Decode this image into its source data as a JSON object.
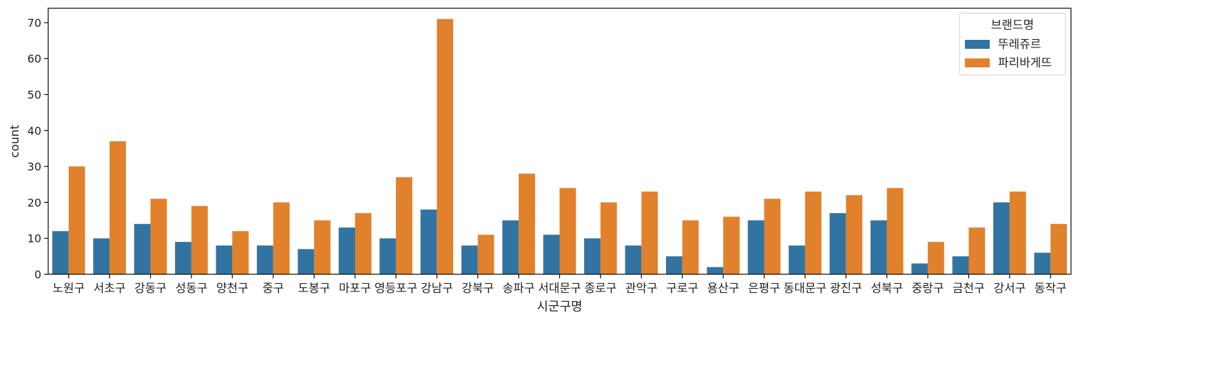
{
  "chart_data": {
    "type": "bar",
    "xlabel": "시군구명",
    "ylabel": "count",
    "ylim": [
      0,
      74
    ],
    "yticks": [
      0,
      10,
      20,
      30,
      40,
      50,
      60,
      70
    ],
    "grid": false,
    "legend": {
      "title": "브랜드명",
      "placement": "top-right"
    },
    "categories": [
      "노원구",
      "서초구",
      "강동구",
      "성동구",
      "양천구",
      "중구",
      "도봉구",
      "마포구",
      "영등포구",
      "강남구",
      "강북구",
      "송파구",
      "서대문구",
      "종로구",
      "관악구",
      "구로구",
      "용산구",
      "은평구",
      "동대문구",
      "광진구",
      "성북구",
      "중랑구",
      "금천구",
      "강서구",
      "동작구"
    ],
    "series": [
      {
        "name": "뚜레쥬르",
        "color": "#3274a1",
        "values": [
          12,
          10,
          14,
          9,
          8,
          8,
          7,
          13,
          10,
          18,
          8,
          15,
          11,
          10,
          8,
          5,
          2,
          15,
          8,
          17,
          15,
          3,
          5,
          20,
          6
        ]
      },
      {
        "name": "파리바게뜨",
        "color": "#e1812c",
        "values": [
          30,
          37,
          21,
          19,
          12,
          20,
          15,
          17,
          27,
          71,
          11,
          28,
          24,
          20,
          23,
          15,
          16,
          21,
          23,
          22,
          24,
          9,
          13,
          23,
          14
        ]
      }
    ]
  }
}
